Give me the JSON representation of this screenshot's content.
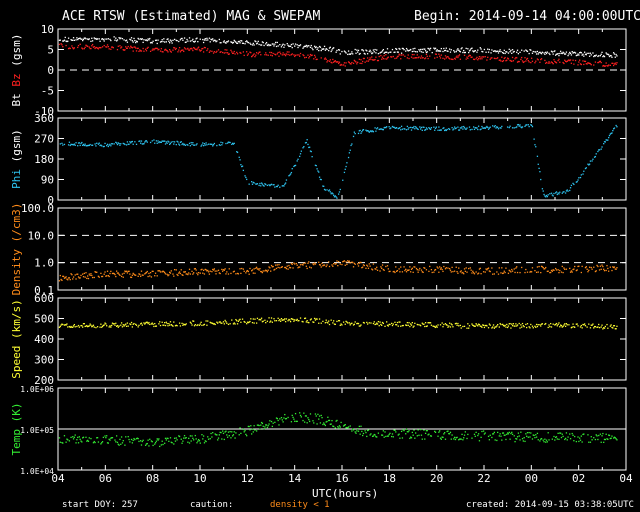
{
  "header": {
    "title": "ACE RTSW (Estimated) MAG & SWEPAM",
    "begin": "Begin: 2014-09-14 04:00:00UTC"
  },
  "footer": {
    "start_doy": "start DOY: 257",
    "caution": "caution:",
    "density_note": "density < 1",
    "created": "created: 2014-09-15 03:38:05UTC"
  },
  "colors": {
    "background": "#000000",
    "axes": "#ffffff",
    "bt": "#ffffff",
    "bz": "#ff2020",
    "phi": "#2ec4f0",
    "density": "#ff8c1a",
    "speed": "#ffff33",
    "temp": "#33ee33"
  },
  "chart_data": [
    {
      "type": "scatter",
      "panel": "magnetic field",
      "ylabel_parts": [
        "Bt",
        "Bz",
        "(gsm)"
      ],
      "ylim": [
        -10,
        10
      ],
      "yticks": [
        "10",
        "5",
        "0",
        "-5",
        "-10"
      ],
      "reference_lines": [
        {
          "y": 0,
          "style": "dashed"
        }
      ],
      "series": [
        {
          "name": "Bt",
          "x": [
            4,
            6,
            8,
            10,
            12,
            14,
            15.5,
            16,
            18,
            20,
            22,
            24,
            26,
            27.6
          ],
          "y": [
            7.5,
            7.8,
            7.2,
            7.5,
            6.8,
            6.0,
            5.2,
            4.5,
            4.8,
            5.0,
            5.0,
            4.5,
            4.0,
            3.8
          ]
        },
        {
          "name": "Bz",
          "x": [
            4,
            6,
            8,
            10,
            12,
            14,
            15.5,
            16,
            18,
            20,
            22,
            24,
            26,
            27.6
          ],
          "y": [
            6.0,
            5.8,
            5.0,
            5.2,
            4.0,
            4.0,
            2.5,
            1.5,
            3.5,
            3.5,
            3.0,
            2.5,
            2.0,
            1.5
          ]
        }
      ]
    },
    {
      "type": "scatter",
      "panel": "phi",
      "ylabel_parts": [
        "Phi",
        "(gsm)"
      ],
      "ylim": [
        0,
        360
      ],
      "yticks": [
        "360",
        "270",
        "180",
        "90",
        "0"
      ],
      "series": [
        {
          "name": "Phi",
          "x": [
            4,
            6,
            8,
            10,
            11.4,
            12,
            13.5,
            14.5,
            15.2,
            15.8,
            16.5,
            18,
            20,
            22,
            24,
            24.5,
            25.5,
            26,
            27.6
          ],
          "y": [
            250,
            245,
            260,
            245,
            250,
            80,
            60,
            260,
            60,
            10,
            300,
            320,
            315,
            320,
            330,
            20,
            40,
            100,
            330
          ]
        }
      ]
    },
    {
      "type": "scatter",
      "panel": "density",
      "ylabel_parts": [
        "Density",
        "(/cm3)"
      ],
      "yscale": "log",
      "ylim": [
        0.1,
        100
      ],
      "yticks": [
        "100.0",
        "10.0",
        "1.0",
        "0.1"
      ],
      "reference_lines": [
        {
          "y": 10,
          "style": "dashed"
        },
        {
          "y": 1,
          "style": "dashed"
        }
      ],
      "series": [
        {
          "name": "Density",
          "x": [
            4,
            6,
            8,
            10,
            12,
            14,
            16,
            18,
            20,
            22,
            24,
            26,
            27.6
          ],
          "y": [
            0.3,
            0.4,
            0.4,
            0.5,
            0.5,
            0.8,
            1.0,
            0.6,
            0.6,
            0.5,
            0.6,
            0.6,
            0.7
          ]
        }
      ]
    },
    {
      "type": "scatter",
      "panel": "speed",
      "ylabel_parts": [
        "Speed",
        "(km/s)"
      ],
      "ylim": [
        200,
        600
      ],
      "yticks": [
        "600",
        "500",
        "400",
        "300",
        "200"
      ],
      "series": [
        {
          "name": "Speed",
          "x": [
            4,
            6,
            8,
            10,
            12,
            14,
            16,
            18,
            20,
            22,
            24,
            26,
            27.6
          ],
          "y": [
            465,
            470,
            475,
            480,
            490,
            500,
            480,
            475,
            470,
            465,
            470,
            470,
            460
          ]
        }
      ]
    },
    {
      "type": "scatter",
      "panel": "temperature",
      "ylabel_parts": [
        "Temp",
        "(K)"
      ],
      "yscale": "log",
      "ylim": [
        10000,
        1000000
      ],
      "yticks": [
        "1.0E+06",
        "1.0E+05",
        "1.0E+04"
      ],
      "reference_lines": [
        {
          "y": 100000,
          "style": "solid"
        }
      ],
      "series": [
        {
          "name": "Temp",
          "x": [
            4,
            6,
            8,
            10,
            12,
            13,
            14,
            15,
            16,
            17,
            18,
            20,
            22,
            24,
            26,
            27.6
          ],
          "y": [
            60000,
            55000,
            50000,
            60000,
            90000,
            150000,
            200000,
            180000,
            120000,
            90000,
            80000,
            75000,
            70000,
            65000,
            65000,
            60000
          ]
        }
      ]
    }
  ],
  "xaxis": {
    "label": "UTC(hours)",
    "range": [
      4,
      28
    ],
    "tick_labels": [
      "04",
      "06",
      "08",
      "10",
      "12",
      "14",
      "16",
      "18",
      "20",
      "22",
      "00",
      "02",
      "04"
    ]
  }
}
